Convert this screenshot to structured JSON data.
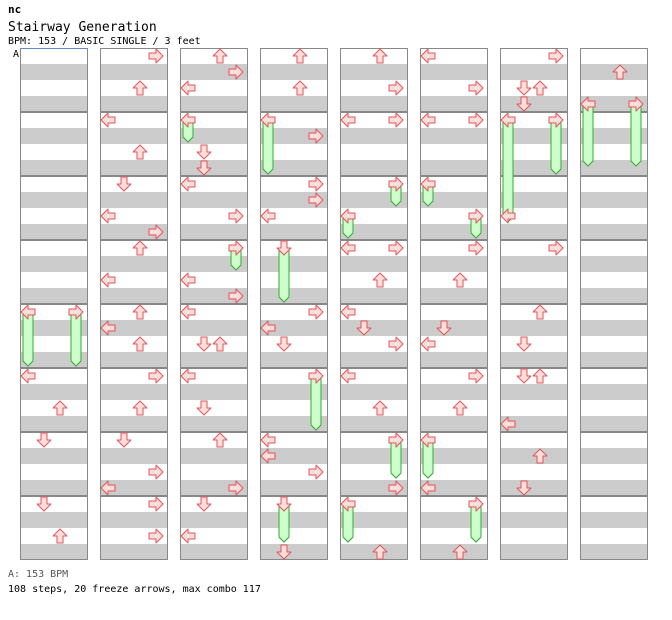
{
  "header": {
    "title": "nc",
    "song": "Stairway Generation",
    "info": "BPM: 153 / BASIC SINGLE / 3 feet",
    "bpm_marker": "A"
  },
  "footer": {
    "bpm_line": "A: 153 BPM",
    "stats_line": "108 steps, 20 freeze arrows, max combo 117"
  },
  "chart": {
    "columns": 8,
    "measures_per_column": 8,
    "lanes": [
      "left",
      "down",
      "up",
      "right"
    ],
    "colors": {
      "stripe": "#cccccc",
      "background": "#ffffff",
      "border": "#888888",
      "arrow_fill": "#ffdddd",
      "arrow_stroke": "#e05555",
      "freeze_fill": "#ccffcc",
      "freeze_stroke": "#33aa33",
      "bpm_line": "#6688cc"
    },
    "arrows": [
      {
        "col": 0,
        "row": 305,
        "lane": "left"
      },
      {
        "col": 0,
        "row": 305,
        "lane": "right"
      },
      {
        "col": 0,
        "row": 369,
        "lane": "left"
      },
      {
        "col": 0,
        "row": 401,
        "lane": "up"
      },
      {
        "col": 0,
        "row": 433,
        "lane": "down"
      },
      {
        "col": 0,
        "row": 497,
        "lane": "down"
      },
      {
        "col": 0,
        "row": 529,
        "lane": "up"
      },
      {
        "col": 1,
        "row": 49,
        "lane": "right"
      },
      {
        "col": 1,
        "row": 81,
        "lane": "up"
      },
      {
        "col": 1,
        "row": 113,
        "lane": "left"
      },
      {
        "col": 1,
        "row": 145,
        "lane": "up"
      },
      {
        "col": 1,
        "row": 177,
        "lane": "down"
      },
      {
        "col": 1,
        "row": 209,
        "lane": "left"
      },
      {
        "col": 1,
        "row": 225,
        "lane": "right"
      },
      {
        "col": 1,
        "row": 241,
        "lane": "up"
      },
      {
        "col": 1,
        "row": 273,
        "lane": "left"
      },
      {
        "col": 1,
        "row": 305,
        "lane": "up"
      },
      {
        "col": 1,
        "row": 321,
        "lane": "left"
      },
      {
        "col": 1,
        "row": 337,
        "lane": "up"
      },
      {
        "col": 1,
        "row": 369,
        "lane": "right"
      },
      {
        "col": 1,
        "row": 401,
        "lane": "up"
      },
      {
        "col": 1,
        "row": 433,
        "lane": "down"
      },
      {
        "col": 1,
        "row": 465,
        "lane": "right"
      },
      {
        "col": 1,
        "row": 481,
        "lane": "left"
      },
      {
        "col": 1,
        "row": 497,
        "lane": "right"
      },
      {
        "col": 1,
        "row": 529,
        "lane": "right"
      },
      {
        "col": 2,
        "row": 49,
        "lane": "up"
      },
      {
        "col": 2,
        "row": 65,
        "lane": "right"
      },
      {
        "col": 2,
        "row": 81,
        "lane": "left"
      },
      {
        "col": 2,
        "row": 113,
        "lane": "left"
      },
      {
        "col": 2,
        "row": 145,
        "lane": "down"
      },
      {
        "col": 2,
        "row": 161,
        "lane": "down"
      },
      {
        "col": 2,
        "row": 177,
        "lane": "left"
      },
      {
        "col": 2,
        "row": 209,
        "lane": "right"
      },
      {
        "col": 2,
        "row": 241,
        "lane": "right"
      },
      {
        "col": 2,
        "row": 273,
        "lane": "left"
      },
      {
        "col": 2,
        "row": 289,
        "lane": "right"
      },
      {
        "col": 2,
        "row": 305,
        "lane": "left"
      },
      {
        "col": 2,
        "row": 337,
        "lane": "down"
      },
      {
        "col": 2,
        "row": 337,
        "lane": "up"
      },
      {
        "col": 2,
        "row": 369,
        "lane": "left"
      },
      {
        "col": 2,
        "row": 401,
        "lane": "down"
      },
      {
        "col": 2,
        "row": 433,
        "lane": "up"
      },
      {
        "col": 2,
        "row": 481,
        "lane": "right"
      },
      {
        "col": 2,
        "row": 497,
        "lane": "down"
      },
      {
        "col": 2,
        "row": 529,
        "lane": "left"
      },
      {
        "col": 3,
        "row": 49,
        "lane": "up"
      },
      {
        "col": 3,
        "row": 81,
        "lane": "up"
      },
      {
        "col": 3,
        "row": 113,
        "lane": "left"
      },
      {
        "col": 3,
        "row": 129,
        "lane": "right"
      },
      {
        "col": 3,
        "row": 177,
        "lane": "right"
      },
      {
        "col": 3,
        "row": 193,
        "lane": "right"
      },
      {
        "col": 3,
        "row": 209,
        "lane": "left"
      },
      {
        "col": 3,
        "row": 241,
        "lane": "down"
      },
      {
        "col": 3,
        "row": 305,
        "lane": "right"
      },
      {
        "col": 3,
        "row": 321,
        "lane": "left"
      },
      {
        "col": 3,
        "row": 337,
        "lane": "down"
      },
      {
        "col": 3,
        "row": 369,
        "lane": "right"
      },
      {
        "col": 3,
        "row": 433,
        "lane": "left"
      },
      {
        "col": 3,
        "row": 449,
        "lane": "left"
      },
      {
        "col": 3,
        "row": 465,
        "lane": "right"
      },
      {
        "col": 3,
        "row": 497,
        "lane": "down"
      },
      {
        "col": 3,
        "row": 545,
        "lane": "down"
      },
      {
        "col": 4,
        "row": 49,
        "lane": "up"
      },
      {
        "col": 4,
        "row": 81,
        "lane": "right"
      },
      {
        "col": 4,
        "row": 113,
        "lane": "left"
      },
      {
        "col": 4,
        "row": 113,
        "lane": "right"
      },
      {
        "col": 4,
        "row": 177,
        "lane": "right"
      },
      {
        "col": 4,
        "row": 209,
        "lane": "left"
      },
      {
        "col": 4,
        "row": 241,
        "lane": "left"
      },
      {
        "col": 4,
        "row": 241,
        "lane": "right"
      },
      {
        "col": 4,
        "row": 273,
        "lane": "up"
      },
      {
        "col": 4,
        "row": 305,
        "lane": "left"
      },
      {
        "col": 4,
        "row": 321,
        "lane": "down"
      },
      {
        "col": 4,
        "row": 337,
        "lane": "right"
      },
      {
        "col": 4,
        "row": 369,
        "lane": "left"
      },
      {
        "col": 4,
        "row": 401,
        "lane": "up"
      },
      {
        "col": 4,
        "row": 433,
        "lane": "right"
      },
      {
        "col": 4,
        "row": 481,
        "lane": "right"
      },
      {
        "col": 4,
        "row": 497,
        "lane": "left"
      },
      {
        "col": 4,
        "row": 545,
        "lane": "up"
      },
      {
        "col": 5,
        "row": 49,
        "lane": "left"
      },
      {
        "col": 5,
        "row": 81,
        "lane": "right"
      },
      {
        "col": 5,
        "row": 113,
        "lane": "left"
      },
      {
        "col": 5,
        "row": 113,
        "lane": "right"
      },
      {
        "col": 5,
        "row": 177,
        "lane": "left"
      },
      {
        "col": 5,
        "row": 209,
        "lane": "right"
      },
      {
        "col": 5,
        "row": 241,
        "lane": "right"
      },
      {
        "col": 5,
        "row": 273,
        "lane": "up"
      },
      {
        "col": 5,
        "row": 321,
        "lane": "down"
      },
      {
        "col": 5,
        "row": 337,
        "lane": "left"
      },
      {
        "col": 5,
        "row": 369,
        "lane": "right"
      },
      {
        "col": 5,
        "row": 401,
        "lane": "up"
      },
      {
        "col": 5,
        "row": 433,
        "lane": "left"
      },
      {
        "col": 5,
        "row": 481,
        "lane": "left"
      },
      {
        "col": 5,
        "row": 497,
        "lane": "right"
      },
      {
        "col": 5,
        "row": 545,
        "lane": "up"
      },
      {
        "col": 6,
        "row": 49,
        "lane": "right"
      },
      {
        "col": 6,
        "row": 81,
        "lane": "down"
      },
      {
        "col": 6,
        "row": 81,
        "lane": "up"
      },
      {
        "col": 6,
        "row": 97,
        "lane": "down"
      },
      {
        "col": 6,
        "row": 113,
        "lane": "left"
      },
      {
        "col": 6,
        "row": 113,
        "lane": "right"
      },
      {
        "col": 6,
        "row": 209,
        "lane": "left"
      },
      {
        "col": 6,
        "row": 241,
        "lane": "right"
      },
      {
        "col": 6,
        "row": 305,
        "lane": "up"
      },
      {
        "col": 6,
        "row": 337,
        "lane": "down"
      },
      {
        "col": 6,
        "row": 369,
        "lane": "down"
      },
      {
        "col": 6,
        "row": 369,
        "lane": "up"
      },
      {
        "col": 6,
        "row": 417,
        "lane": "left"
      },
      {
        "col": 6,
        "row": 449,
        "lane": "up"
      },
      {
        "col": 6,
        "row": 481,
        "lane": "down"
      },
      {
        "col": 7,
        "row": 65,
        "lane": "up"
      },
      {
        "col": 7,
        "row": 97,
        "lane": "left"
      },
      {
        "col": 7,
        "row": 97,
        "lane": "right"
      }
    ],
    "freezes": [
      {
        "col": 0,
        "lane": "left",
        "from": 305,
        "to": 361
      },
      {
        "col": 0,
        "lane": "right",
        "from": 305,
        "to": 361
      },
      {
        "col": 2,
        "lane": "left",
        "from": 113,
        "to": 137
      },
      {
        "col": 2,
        "lane": "right",
        "from": 241,
        "to": 265
      },
      {
        "col": 3,
        "lane": "left",
        "from": 113,
        "to": 169
      },
      {
        "col": 3,
        "lane": "down",
        "from": 241,
        "to": 297
      },
      {
        "col": 3,
        "lane": "right",
        "from": 369,
        "to": 425
      },
      {
        "col": 3,
        "lane": "down",
        "from": 497,
        "to": 537
      },
      {
        "col": 4,
        "lane": "right",
        "from": 177,
        "to": 201
      },
      {
        "col": 4,
        "lane": "left",
        "from": 209,
        "to": 233
      },
      {
        "col": 4,
        "lane": "right",
        "from": 433,
        "to": 473
      },
      {
        "col": 4,
        "lane": "left",
        "from": 497,
        "to": 537
      },
      {
        "col": 5,
        "lane": "left",
        "from": 177,
        "to": 201
      },
      {
        "col": 5,
        "lane": "right",
        "from": 209,
        "to": 233
      },
      {
        "col": 5,
        "lane": "left",
        "from": 433,
        "to": 473
      },
      {
        "col": 5,
        "lane": "right",
        "from": 497,
        "to": 537
      },
      {
        "col": 6,
        "lane": "left",
        "from": 113,
        "to": 217
      },
      {
        "col": 6,
        "lane": "right",
        "from": 113,
        "to": 169
      },
      {
        "col": 7,
        "lane": "left",
        "from": 97,
        "to": 161
      },
      {
        "col": 7,
        "lane": "right",
        "from": 97,
        "to": 161
      }
    ]
  }
}
